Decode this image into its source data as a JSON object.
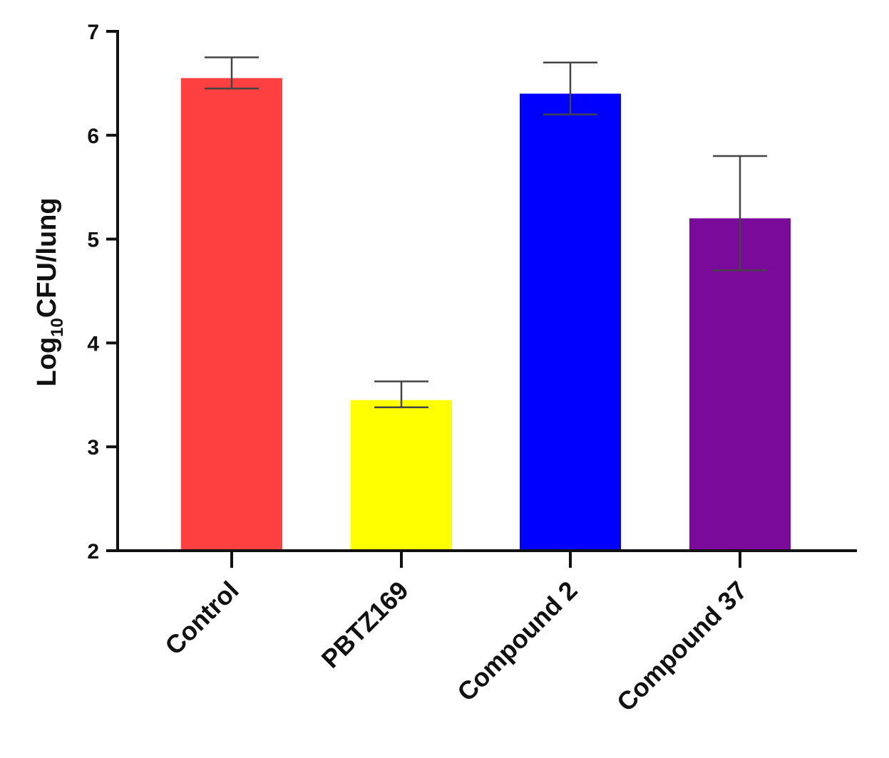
{
  "chart_data": {
    "type": "bar",
    "categories": [
      "Control",
      "PBTZ169",
      "Compound 2",
      "Compound 37"
    ],
    "values": [
      6.55,
      3.45,
      6.4,
      5.2
    ],
    "errors": [
      {
        "low": 6.45,
        "high": 6.75
      },
      {
        "low": 3.38,
        "high": 3.63
      },
      {
        "low": 6.2,
        "high": 6.7
      },
      {
        "low": 4.7,
        "high": 5.8
      }
    ],
    "colors": [
      "#ff4040",
      "#ffff00",
      "#0000ff",
      "#7a0a99"
    ],
    "title": "",
    "xlabel": "",
    "ylabel": {
      "main": "Log",
      "subscript": "10",
      "rest": "CFU/lung"
    },
    "ylim": [
      2,
      7
    ],
    "yticks": [
      "2",
      "3",
      "4",
      "5",
      "6",
      "7"
    ],
    "grid": false
  }
}
